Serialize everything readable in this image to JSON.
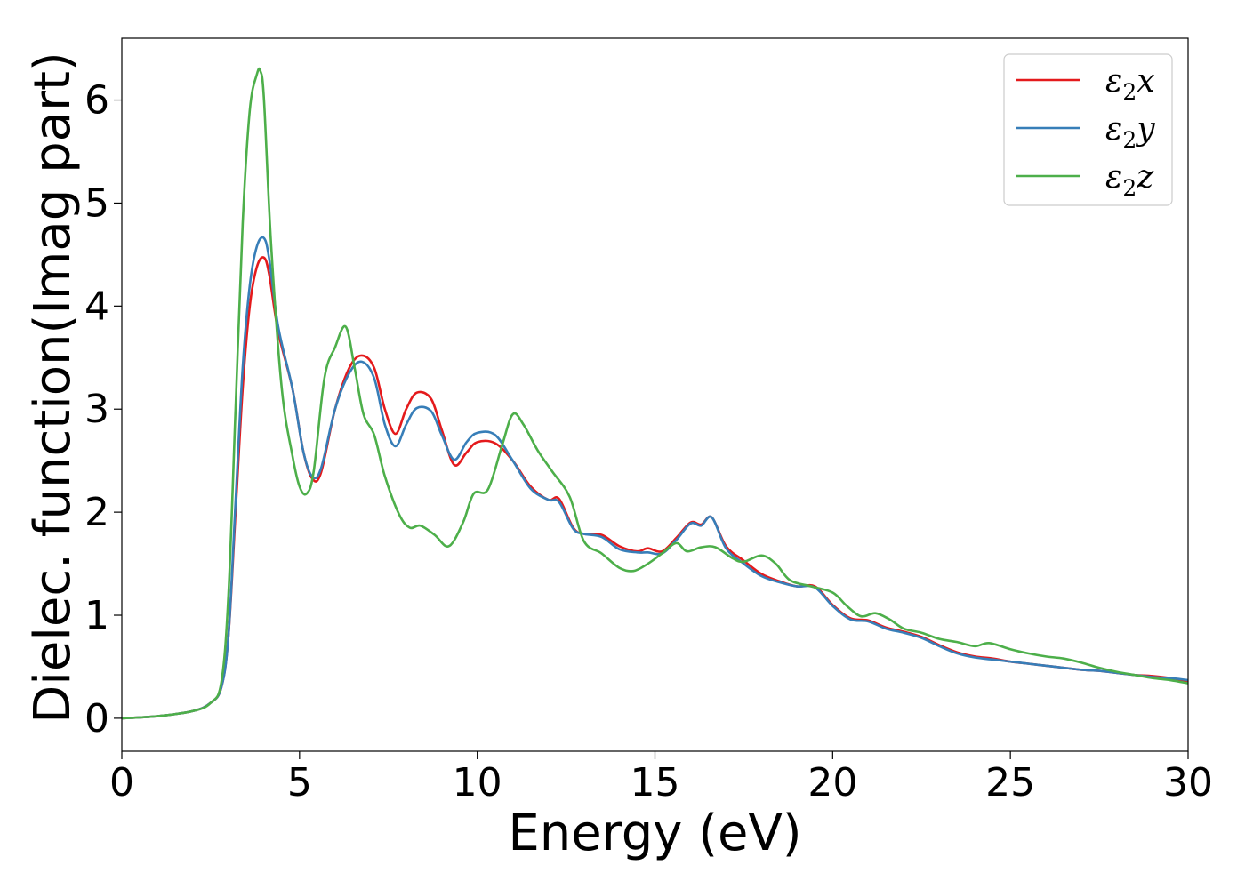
{
  "chart_data": {
    "type": "line",
    "title": "",
    "xlabel": "Energy (eV)",
    "ylabel": "Dielec. function(Imag part)",
    "xlim": [
      0,
      30
    ],
    "ylim": [
      -0.32,
      6.6
    ],
    "xticks": [
      0,
      5,
      10,
      15,
      20,
      25,
      30
    ],
    "xtick_labels": [
      "0",
      "5",
      "10",
      "15",
      "20",
      "25",
      "30"
    ],
    "yticks": [
      0,
      1,
      2,
      3,
      4,
      5,
      6
    ],
    "ytick_labels": [
      "0",
      "1",
      "2",
      "3",
      "4",
      "5",
      "6"
    ],
    "grid": false,
    "legend_position": "top-right",
    "series": [
      {
        "name": "ε2x",
        "legend_base": "ε",
        "legend_sub": "2",
        "legend_suffix": "x",
        "color": "#e41a1c",
        "points": [
          [
            0,
            0.0
          ],
          [
            1,
            0.02
          ],
          [
            2,
            0.07
          ],
          [
            2.5,
            0.15
          ],
          [
            2.8,
            0.3
          ],
          [
            3.0,
            0.8
          ],
          [
            3.2,
            2.0
          ],
          [
            3.4,
            3.2
          ],
          [
            3.6,
            4.0
          ],
          [
            3.8,
            4.38
          ],
          [
            4.0,
            4.47
          ],
          [
            4.15,
            4.3
          ],
          [
            4.4,
            3.75
          ],
          [
            4.8,
            3.2
          ],
          [
            5.1,
            2.6
          ],
          [
            5.35,
            2.33
          ],
          [
            5.6,
            2.38
          ],
          [
            6.0,
            3.0
          ],
          [
            6.4,
            3.4
          ],
          [
            6.75,
            3.52
          ],
          [
            7.1,
            3.4
          ],
          [
            7.4,
            3.0
          ],
          [
            7.7,
            2.76
          ],
          [
            8.0,
            3.0
          ],
          [
            8.3,
            3.16
          ],
          [
            8.7,
            3.1
          ],
          [
            9.0,
            2.8
          ],
          [
            9.35,
            2.46
          ],
          [
            9.7,
            2.58
          ],
          [
            10.0,
            2.68
          ],
          [
            10.5,
            2.67
          ],
          [
            11.0,
            2.5
          ],
          [
            11.5,
            2.25
          ],
          [
            12.0,
            2.12
          ],
          [
            12.3,
            2.13
          ],
          [
            12.7,
            1.85
          ],
          [
            13.0,
            1.79
          ],
          [
            13.5,
            1.78
          ],
          [
            14.0,
            1.67
          ],
          [
            14.5,
            1.62
          ],
          [
            14.8,
            1.65
          ],
          [
            15.2,
            1.62
          ],
          [
            15.6,
            1.75
          ],
          [
            16.0,
            1.9
          ],
          [
            16.3,
            1.88
          ],
          [
            16.6,
            1.95
          ],
          [
            17.0,
            1.67
          ],
          [
            17.5,
            1.53
          ],
          [
            18.0,
            1.4
          ],
          [
            18.5,
            1.33
          ],
          [
            19.0,
            1.28
          ],
          [
            19.5,
            1.28
          ],
          [
            20.0,
            1.1
          ],
          [
            20.5,
            0.97
          ],
          [
            21.0,
            0.95
          ],
          [
            21.5,
            0.88
          ],
          [
            22.0,
            0.84
          ],
          [
            22.5,
            0.79
          ],
          [
            23.0,
            0.71
          ],
          [
            23.5,
            0.64
          ],
          [
            24.0,
            0.6
          ],
          [
            24.5,
            0.58
          ],
          [
            25.0,
            0.55
          ],
          [
            25.5,
            0.53
          ],
          [
            26.0,
            0.51
          ],
          [
            26.5,
            0.49
          ],
          [
            27.0,
            0.47
          ],
          [
            27.5,
            0.46
          ],
          [
            28.0,
            0.44
          ],
          [
            28.5,
            0.42
          ],
          [
            29.0,
            0.41
          ],
          [
            29.5,
            0.39
          ],
          [
            30.0,
            0.36
          ]
        ]
      },
      {
        "name": "ε2y",
        "legend_base": "ε",
        "legend_sub": "2",
        "legend_suffix": "y",
        "color": "#377eb8",
        "points": [
          [
            0,
            0.0
          ],
          [
            1,
            0.02
          ],
          [
            2,
            0.07
          ],
          [
            2.5,
            0.15
          ],
          [
            2.8,
            0.3
          ],
          [
            3.0,
            0.8
          ],
          [
            3.2,
            2.1
          ],
          [
            3.4,
            3.4
          ],
          [
            3.6,
            4.2
          ],
          [
            3.8,
            4.58
          ],
          [
            4.0,
            4.66
          ],
          [
            4.15,
            4.45
          ],
          [
            4.4,
            3.8
          ],
          [
            4.8,
            3.2
          ],
          [
            5.1,
            2.6
          ],
          [
            5.35,
            2.35
          ],
          [
            5.6,
            2.42
          ],
          [
            6.0,
            3.0
          ],
          [
            6.4,
            3.35
          ],
          [
            6.75,
            3.46
          ],
          [
            7.1,
            3.3
          ],
          [
            7.4,
            2.85
          ],
          [
            7.7,
            2.64
          ],
          [
            8.0,
            2.85
          ],
          [
            8.3,
            3.01
          ],
          [
            8.7,
            2.98
          ],
          [
            9.0,
            2.75
          ],
          [
            9.35,
            2.51
          ],
          [
            9.7,
            2.68
          ],
          [
            10.0,
            2.77
          ],
          [
            10.5,
            2.75
          ],
          [
            11.0,
            2.5
          ],
          [
            11.5,
            2.23
          ],
          [
            12.0,
            2.12
          ],
          [
            12.3,
            2.1
          ],
          [
            12.7,
            1.84
          ],
          [
            13.0,
            1.79
          ],
          [
            13.5,
            1.76
          ],
          [
            14.0,
            1.64
          ],
          [
            14.5,
            1.61
          ],
          [
            14.8,
            1.61
          ],
          [
            15.2,
            1.6
          ],
          [
            15.6,
            1.73
          ],
          [
            16.0,
            1.89
          ],
          [
            16.3,
            1.87
          ],
          [
            16.6,
            1.95
          ],
          [
            17.0,
            1.65
          ],
          [
            17.5,
            1.5
          ],
          [
            18.0,
            1.38
          ],
          [
            18.5,
            1.32
          ],
          [
            19.0,
            1.28
          ],
          [
            19.5,
            1.27
          ],
          [
            20.0,
            1.09
          ],
          [
            20.5,
            0.96
          ],
          [
            21.0,
            0.94
          ],
          [
            21.5,
            0.87
          ],
          [
            22.0,
            0.83
          ],
          [
            22.5,
            0.78
          ],
          [
            23.0,
            0.7
          ],
          [
            23.5,
            0.63
          ],
          [
            24.0,
            0.59
          ],
          [
            24.5,
            0.57
          ],
          [
            25.0,
            0.55
          ],
          [
            25.5,
            0.53
          ],
          [
            26.0,
            0.51
          ],
          [
            26.5,
            0.49
          ],
          [
            27.0,
            0.47
          ],
          [
            27.5,
            0.46
          ],
          [
            28.0,
            0.44
          ],
          [
            28.5,
            0.42
          ],
          [
            29.0,
            0.4
          ],
          [
            29.5,
            0.39
          ],
          [
            30.0,
            0.37
          ]
        ]
      },
      {
        "name": "ε2z",
        "legend_base": "ε",
        "legend_sub": "2",
        "legend_suffix": "z",
        "color": "#4daf4a",
        "points": [
          [
            0,
            0.0
          ],
          [
            1,
            0.02
          ],
          [
            2,
            0.07
          ],
          [
            2.5,
            0.15
          ],
          [
            2.8,
            0.35
          ],
          [
            3.0,
            1.2
          ],
          [
            3.2,
            3.0
          ],
          [
            3.4,
            4.8
          ],
          [
            3.6,
            5.9
          ],
          [
            3.8,
            6.25
          ],
          [
            3.9,
            6.28
          ],
          [
            4.0,
            6.0
          ],
          [
            4.2,
            4.6
          ],
          [
            4.5,
            3.2
          ],
          [
            4.8,
            2.55
          ],
          [
            5.0,
            2.25
          ],
          [
            5.2,
            2.18
          ],
          [
            5.4,
            2.4
          ],
          [
            5.7,
            3.3
          ],
          [
            6.0,
            3.6
          ],
          [
            6.3,
            3.8
          ],
          [
            6.55,
            3.4
          ],
          [
            6.8,
            2.95
          ],
          [
            7.1,
            2.75
          ],
          [
            7.4,
            2.35
          ],
          [
            7.8,
            1.98
          ],
          [
            8.1,
            1.85
          ],
          [
            8.4,
            1.87
          ],
          [
            8.8,
            1.78
          ],
          [
            9.2,
            1.67
          ],
          [
            9.6,
            1.9
          ],
          [
            9.9,
            2.18
          ],
          [
            10.3,
            2.22
          ],
          [
            10.7,
            2.65
          ],
          [
            11.0,
            2.95
          ],
          [
            11.3,
            2.85
          ],
          [
            11.7,
            2.6
          ],
          [
            12.1,
            2.4
          ],
          [
            12.6,
            2.15
          ],
          [
            13.0,
            1.72
          ],
          [
            13.5,
            1.6
          ],
          [
            14.0,
            1.46
          ],
          [
            14.4,
            1.43
          ],
          [
            14.8,
            1.5
          ],
          [
            15.2,
            1.6
          ],
          [
            15.6,
            1.7
          ],
          [
            15.9,
            1.62
          ],
          [
            16.3,
            1.66
          ],
          [
            16.7,
            1.66
          ],
          [
            17.2,
            1.55
          ],
          [
            17.5,
            1.52
          ],
          [
            18.0,
            1.58
          ],
          [
            18.4,
            1.5
          ],
          [
            18.8,
            1.34
          ],
          [
            19.4,
            1.28
          ],
          [
            20.0,
            1.22
          ],
          [
            20.4,
            1.09
          ],
          [
            20.8,
            0.99
          ],
          [
            21.2,
            1.02
          ],
          [
            21.6,
            0.96
          ],
          [
            22.0,
            0.87
          ],
          [
            22.5,
            0.83
          ],
          [
            23.0,
            0.77
          ],
          [
            23.5,
            0.74
          ],
          [
            24.0,
            0.7
          ],
          [
            24.4,
            0.73
          ],
          [
            25.0,
            0.67
          ],
          [
            25.5,
            0.63
          ],
          [
            26.0,
            0.6
          ],
          [
            26.5,
            0.58
          ],
          [
            27.0,
            0.54
          ],
          [
            27.5,
            0.49
          ],
          [
            28.0,
            0.45
          ],
          [
            28.5,
            0.42
          ],
          [
            29.0,
            0.39
          ],
          [
            29.5,
            0.37
          ],
          [
            30.0,
            0.34
          ]
        ]
      }
    ]
  }
}
